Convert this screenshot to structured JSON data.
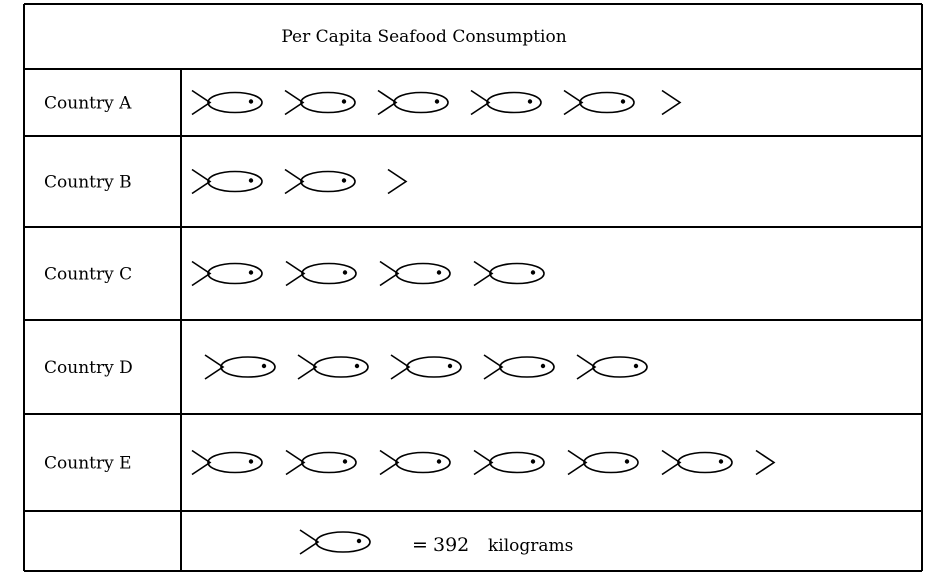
{
  "chart_data": {
    "type": "pictograph",
    "title": "Per Capita Seafood Consumption",
    "categories": [
      "Country A",
      "Country B",
      "Country C",
      "Country D",
      "Country E"
    ],
    "values": [
      5.5,
      2.5,
      4,
      5,
      6.5
    ],
    "key": {
      "symbol": "fish-icon",
      "equals_text": "=",
      "value_text": "392",
      "unit_text": "kilograms",
      "value": 392
    }
  }
}
